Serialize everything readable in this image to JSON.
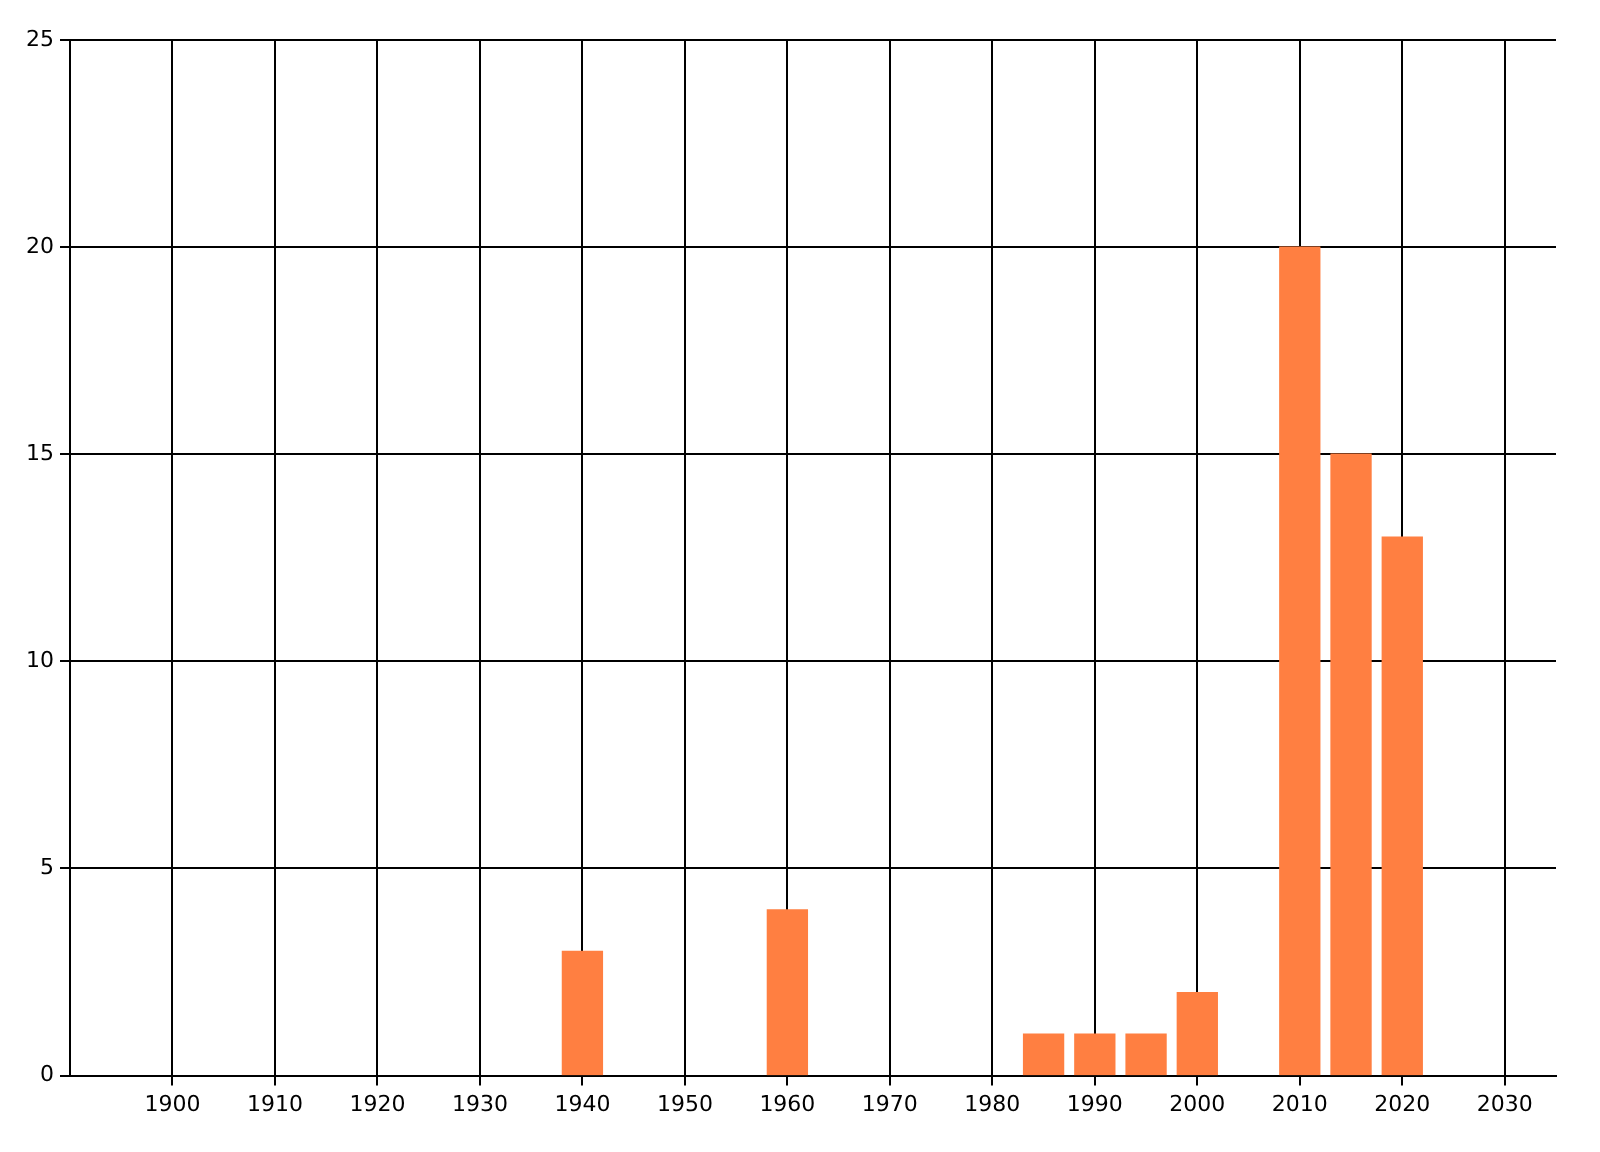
{
  "chart_data": {
    "type": "bar",
    "x": [
      1940,
      1960,
      1985,
      1990,
      1995,
      2000,
      2010,
      2015,
      2020
    ],
    "values": [
      3,
      4,
      1,
      1,
      1,
      2,
      20,
      15,
      13
    ],
    "color": "#ff7f41",
    "xlim": [
      1890,
      2035
    ],
    "xticks": [
      1900,
      1910,
      1920,
      1930,
      1940,
      1950,
      1960,
      1970,
      1980,
      1990,
      2000,
      2010,
      2020,
      2030
    ],
    "ylim": [
      0,
      25
    ],
    "yticks": [
      0,
      5,
      10,
      15,
      20,
      25
    ],
    "grid": true,
    "legend": false
  }
}
